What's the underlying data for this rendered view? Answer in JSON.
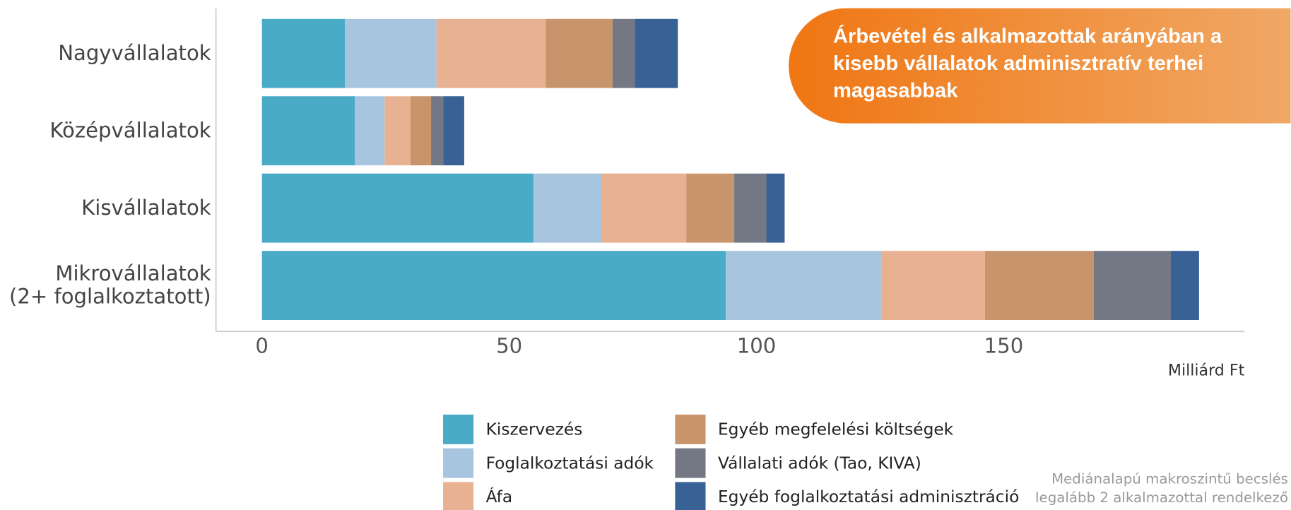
{
  "chart_data": {
    "type": "stacked_barh",
    "annotation": "Árbevétel és alkalmazottak arányában a kisebb vállalatok adminisztratív terhei magasabbak",
    "notes": [
      "Mediánalapú makroszintű becslés",
      "legalább 2 alkalmazottal rendelkező"
    ],
    "xlabel": "Milliárd Ft",
    "categories": [
      "Nagyvállalatok",
      "Középvállalatok",
      "Kisvállalatok",
      "Mikrovállalatok\n(2+ foglalkoztatott)"
    ],
    "series": [
      {
        "name": "Kiszervezés",
        "color": "#4aabc6",
        "values": [
          16.8,
          18.8,
          54.9,
          93.8
        ]
      },
      {
        "name": "Foglalkoztatási adók",
        "color": "#a7c5de",
        "values": [
          18.5,
          6.0,
          13.8,
          31.4
        ]
      },
      {
        "name": "Áfa",
        "color": "#e8b292",
        "values": [
          22.1,
          5.2,
          17.1,
          21.0
        ]
      },
      {
        "name": "Egyéb megfelelési költségek",
        "color": "#c8946c",
        "values": [
          13.5,
          4.2,
          9.7,
          22.0
        ]
      },
      {
        "name": "Vállalati adók (Tao, KIVA)",
        "color": "#737884",
        "values": [
          4.5,
          2.5,
          6.5,
          15.6
        ]
      },
      {
        "name": "Egyéb foglalkoztatási adminisztráció",
        "color": "#386196",
        "values": [
          8.7,
          4.2,
          3.7,
          5.7
        ]
      }
    ],
    "xlim": [
      -9.3,
      198.7
    ],
    "xticks": [
      0,
      50,
      100,
      150
    ]
  }
}
